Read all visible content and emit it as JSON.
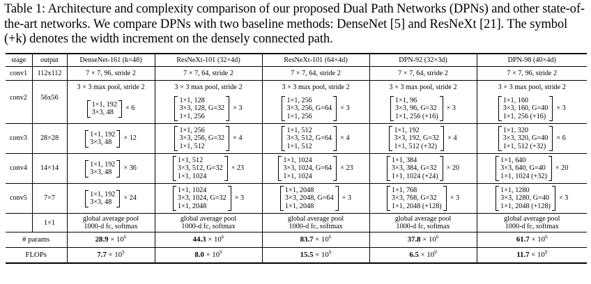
{
  "caption": {
    "label": "Table 1:",
    "text": "Architecture and complexity comparison of our proposed Dual Path Networks (DPNs) and other state-of-the-art networks. We compare DPNs with two baseline methods: DenseNet [5] and ResNeXt [21]. The symbol (+k) denotes the width increment on the densely connected path."
  },
  "header": [
    "stage",
    "output",
    "DenseNet-161 (k=48)",
    "ResNeXt-101 (32×4d)",
    "ResNeXt-101 (64×4d)",
    "DPN-92 (32×3d)",
    "DPN-98 (40×4d)"
  ],
  "conv1": {
    "stage": "conv1",
    "output": "112x112",
    "cells": [
      "7 × 7, 96, stride 2",
      "7 × 7, 64, stride 2",
      "7 × 7, 64, stride 2",
      "7 × 7, 64, stride 2",
      "7 × 7, 96, stride 2"
    ]
  },
  "maxpool": [
    "3 × 3 max pool, stride 2",
    "3 × 3 max pool, stride 2",
    "3 × 3 max pool, stride 2",
    "3 × 3 max pool, stride 2",
    "3 × 3 max pool, stride 2"
  ],
  "blocks": [
    {
      "stage": "conv2",
      "output": "56x56",
      "cells": [
        {
          "lines": [
            "1×1, 192",
            "3×3, 48"
          ],
          "mult": "× 6"
        },
        {
          "lines": [
            "1×1, 128",
            "3×3, 128, G=32",
            "1×1, 256"
          ],
          "mult": "× 3"
        },
        {
          "lines": [
            "1×1, 256",
            "3×3, 256, G=64",
            "1×1, 256"
          ],
          "mult": "× 3"
        },
        {
          "lines": [
            "1×1, 96",
            "3×3, 96, G=32",
            "1×1, 256 (+16)"
          ],
          "mult": "× 3"
        },
        {
          "lines": [
            "1×1, 160",
            "3×3, 160, G=40",
            "1×1, 256 (+16)"
          ],
          "mult": "× 3"
        }
      ]
    },
    {
      "stage": "conv3",
      "output": "28×28",
      "cells": [
        {
          "lines": [
            "1×1, 192",
            "3×3, 48"
          ],
          "mult": "× 12"
        },
        {
          "lines": [
            "1×1, 256",
            "3×3, 256, G=32",
            "1×1, 512"
          ],
          "mult": "× 4"
        },
        {
          "lines": [
            "1×1, 512",
            "3×3, 512, G=64",
            "1×1, 512"
          ],
          "mult": "× 4"
        },
        {
          "lines": [
            "1×1, 192",
            "3×3, 192, G=32",
            "1×1, 512 (+32)"
          ],
          "mult": "× 4"
        },
        {
          "lines": [
            "1×1, 320",
            "3×3, 320, G=40",
            "1×1, 512 (+32)"
          ],
          "mult": "× 6"
        }
      ]
    },
    {
      "stage": "conv4",
      "output": "14×14",
      "cells": [
        {
          "lines": [
            "1×1, 192",
            "3×3, 48"
          ],
          "mult": "× 36"
        },
        {
          "lines": [
            "1×1, 512",
            "3×3, 512, G=32",
            "1×1, 1024"
          ],
          "mult": "× 23"
        },
        {
          "lines": [
            "1×1, 1024",
            "3×3, 1024, G=64",
            "1×1, 1024"
          ],
          "mult": "× 23"
        },
        {
          "lines": [
            "1×1, 384",
            "3×3, 384, G=32",
            "1×1, 1024 (+24)"
          ],
          "mult": "× 20"
        },
        {
          "lines": [
            "1×1, 640",
            "3×3, 640, G=40",
            "1×1, 1024 (+32)"
          ],
          "mult": "× 20"
        }
      ]
    },
    {
      "stage": "conv5",
      "output": "7×7",
      "cells": [
        {
          "lines": [
            "1×1, 192",
            "3×3, 48"
          ],
          "mult": "× 24"
        },
        {
          "lines": [
            "1×1, 1024",
            "3×3, 1024, G=32",
            "1×1, 2048"
          ],
          "mult": "× 3"
        },
        {
          "lines": [
            "1×1, 2048",
            "3×3, 2048, G=64",
            "1×1, 2048"
          ],
          "mult": "× 3"
        },
        {
          "lines": [
            "1×1, 768",
            "3×3, 768, G=32",
            "1×1, 2048 (+128)"
          ],
          "mult": "× 3"
        },
        {
          "lines": [
            "1×1, 1280",
            "3×3, 1280, G=40",
            "1×1, 2048 (+128)"
          ],
          "mult": "× 3"
        }
      ]
    }
  ],
  "pool": {
    "output": "1×1",
    "line1": "global average pool",
    "line2": "1000-d fc, softmax"
  },
  "params": {
    "label": "# params",
    "values": [
      {
        "mantissa": "28.9",
        "exp": "6"
      },
      {
        "mantissa": "44.3",
        "exp": "6"
      },
      {
        "mantissa": "83.7",
        "exp": "6"
      },
      {
        "mantissa": "37.8",
        "exp": "6"
      },
      {
        "mantissa": "61.7",
        "exp": "6"
      }
    ]
  },
  "flops": {
    "label": "FLOPs",
    "values": [
      {
        "mantissa": "7.7",
        "exp": "9"
      },
      {
        "mantissa": "8.0",
        "exp": "9"
      },
      {
        "mantissa": "15.5",
        "exp": "9"
      },
      {
        "mantissa": "6.5",
        "exp": "9"
      },
      {
        "mantissa": "11.7",
        "exp": "9"
      }
    ]
  },
  "times_ten": "× 10"
}
